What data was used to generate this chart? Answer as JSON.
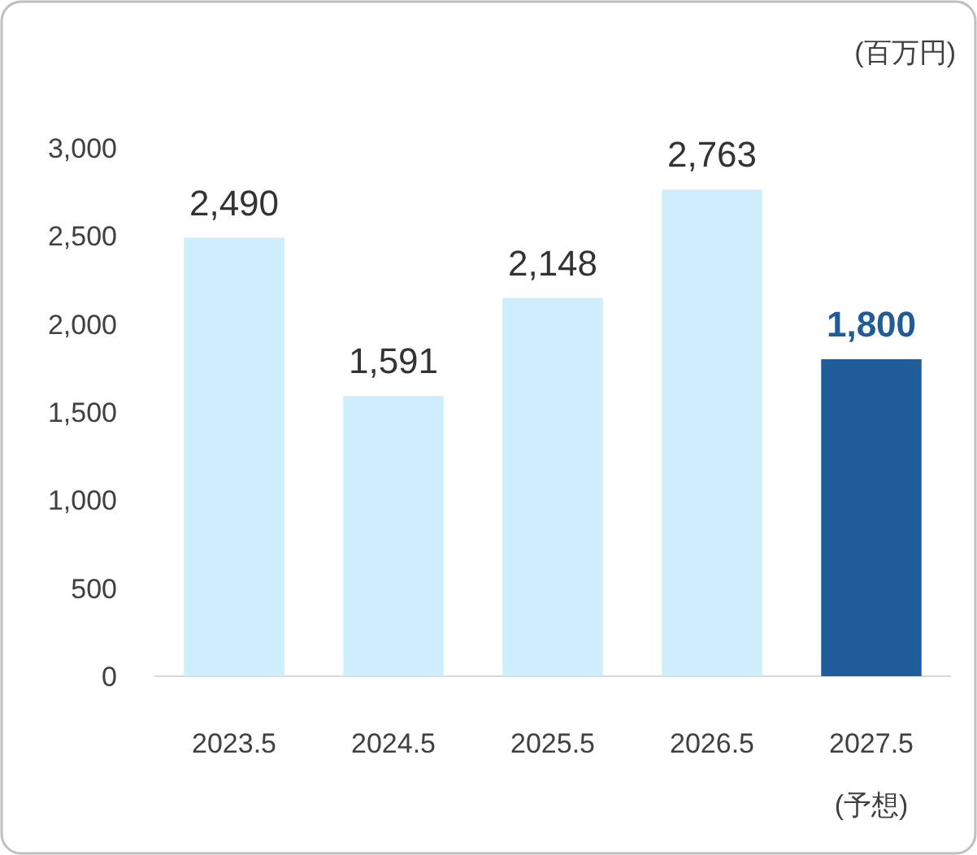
{
  "chart_data": {
    "type": "bar",
    "ylabel": "(百万円)",
    "categories": [
      "2023.5",
      "2024.5",
      "2025.5",
      "2026.5",
      "2027.5 (予想)"
    ],
    "values": [
      2490,
      1591,
      2148,
      2763,
      1800
    ],
    "value_labels": [
      "2,490",
      "1,591",
      "2,148",
      "2,763",
      "1,800"
    ],
    "colors": [
      "#cdeefa",
      "#cdeefa",
      "#cdeefa",
      "#cdeefa",
      "#1f5c99"
    ],
    "ylim": [
      0,
      3000
    ],
    "yticks": [
      0,
      500,
      {
        "value": 1000,
        "label": "1,000"
      },
      {
        "value": 1500,
        "label": "1,500"
      },
      {
        "value": 2000,
        "label": "2,000"
      },
      {
        "value": 2500,
        "label": "2,500"
      },
      {
        "value": 3000,
        "label": "3,000"
      }
    ]
  }
}
